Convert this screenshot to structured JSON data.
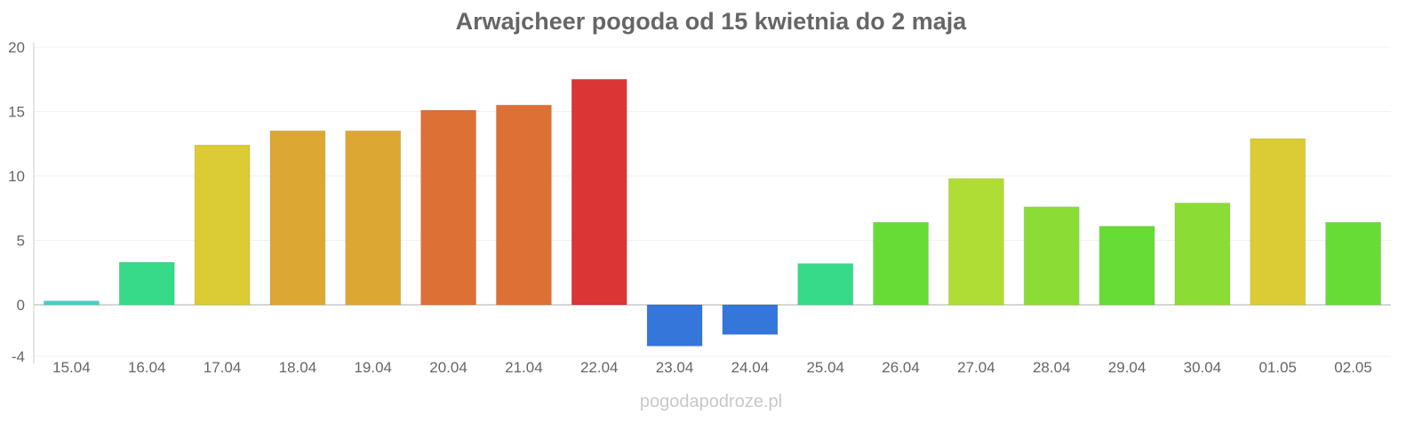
{
  "chart_data": {
    "type": "bar",
    "title": "Arwajcheer pogoda od 15 kwietnia do 2 maja",
    "xlabel": "",
    "ylabel": "",
    "ylim": [
      -4,
      20
    ],
    "yticks": [
      -4,
      0,
      5,
      10,
      15,
      20
    ],
    "grid": true,
    "categories": [
      "15.04",
      "16.04",
      "17.04",
      "18.04",
      "19.04",
      "20.04",
      "21.04",
      "22.04",
      "23.04",
      "24.04",
      "25.04",
      "26.04",
      "27.04",
      "28.04",
      "29.04",
      "30.04",
      "01.05",
      "02.05"
    ],
    "values": [
      0.3,
      3.3,
      12.4,
      13.5,
      13.5,
      15.1,
      15.5,
      17.5,
      -3.2,
      -2.3,
      3.2,
      6.4,
      9.8,
      7.6,
      6.1,
      7.9,
      12.9,
      6.4
    ],
    "colors": [
      "#45d0c8",
      "#36da88",
      "#dbcb35",
      "#dca833",
      "#dca833",
      "#dd7035",
      "#dd7035",
      "#db3535",
      "#3576db",
      "#3576db",
      "#36da88",
      "#68dc36",
      "#b0dc36",
      "#8cdc36",
      "#68dc36",
      "#8cdc36",
      "#dbcb35",
      "#68dc36"
    ]
  },
  "watermark": "pogodapodroze.pl"
}
